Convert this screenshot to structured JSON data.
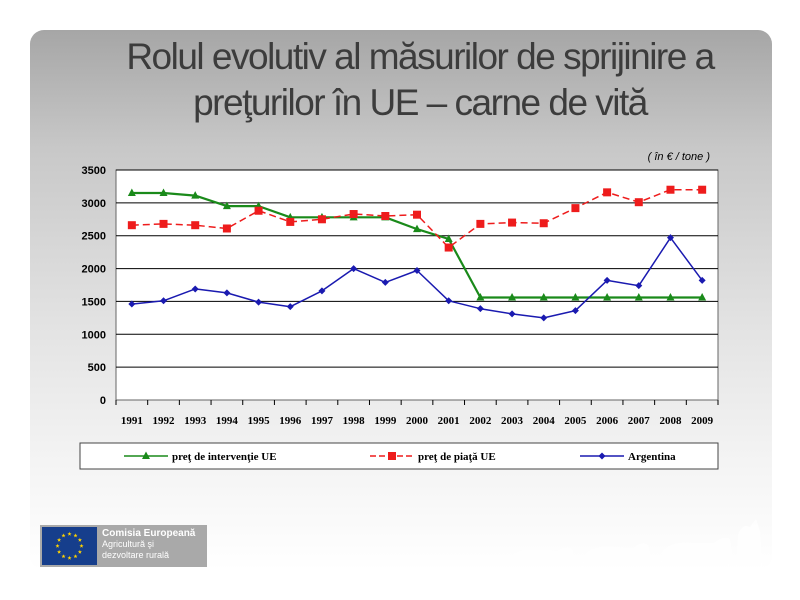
{
  "slide": {
    "title_line1": "Rolul evolutiv al măsurilor de sprijinire a",
    "title_line2": "preţurilor în UE – carne de vită"
  },
  "chart_data": {
    "type": "line",
    "unit_note": "( în € / tone )",
    "categories": [
      "1991",
      "1992",
      "1993",
      "1994",
      "1995",
      "1996",
      "1997",
      "1998",
      "1999",
      "2000",
      "2001",
      "2002",
      "2003",
      "2004",
      "2005",
      "2006",
      "2007",
      "2008",
      "2009"
    ],
    "ylim": [
      0,
      3500
    ],
    "yticks": [
      0,
      500,
      1000,
      1500,
      2000,
      2500,
      3000,
      3500
    ],
    "grid": true,
    "legend_position": "bottom",
    "series": [
      {
        "name": "preţ de intervenţie UE",
        "color": "#1a8a1a",
        "dash": "solid",
        "marker": "triangle",
        "values": [
          3150,
          3150,
          3110,
          2950,
          2950,
          2780,
          2780,
          2780,
          2780,
          2600,
          2450,
          1560,
          1560,
          1560,
          1560,
          1560,
          1560,
          1560,
          1560
        ]
      },
      {
        "name": "preţ de piaţă UE",
        "color": "#ee1c1c",
        "dash": "dashed",
        "marker": "square",
        "values": [
          2660,
          2680,
          2660,
          2610,
          2880,
          2710,
          2750,
          2830,
          2800,
          2820,
          2320,
          2680,
          2700,
          2690,
          2920,
          3160,
          3010,
          3200,
          3200
        ]
      },
      {
        "name": "Argentina",
        "color": "#1a1ab0",
        "dash": "solid",
        "marker": "diamond",
        "values": [
          1460,
          1510,
          1690,
          1630,
          1490,
          1420,
          1660,
          2000,
          1790,
          1970,
          1510,
          1390,
          1310,
          1250,
          1360,
          1820,
          1740,
          2470,
          1820
        ]
      }
    ]
  },
  "logo": {
    "line1": "Comisia Europeană",
    "line2": "Agricultură şi",
    "line3": "dezvoltare rurală",
    "flag_color": "#163e8c",
    "star_color": "#ffd200"
  }
}
